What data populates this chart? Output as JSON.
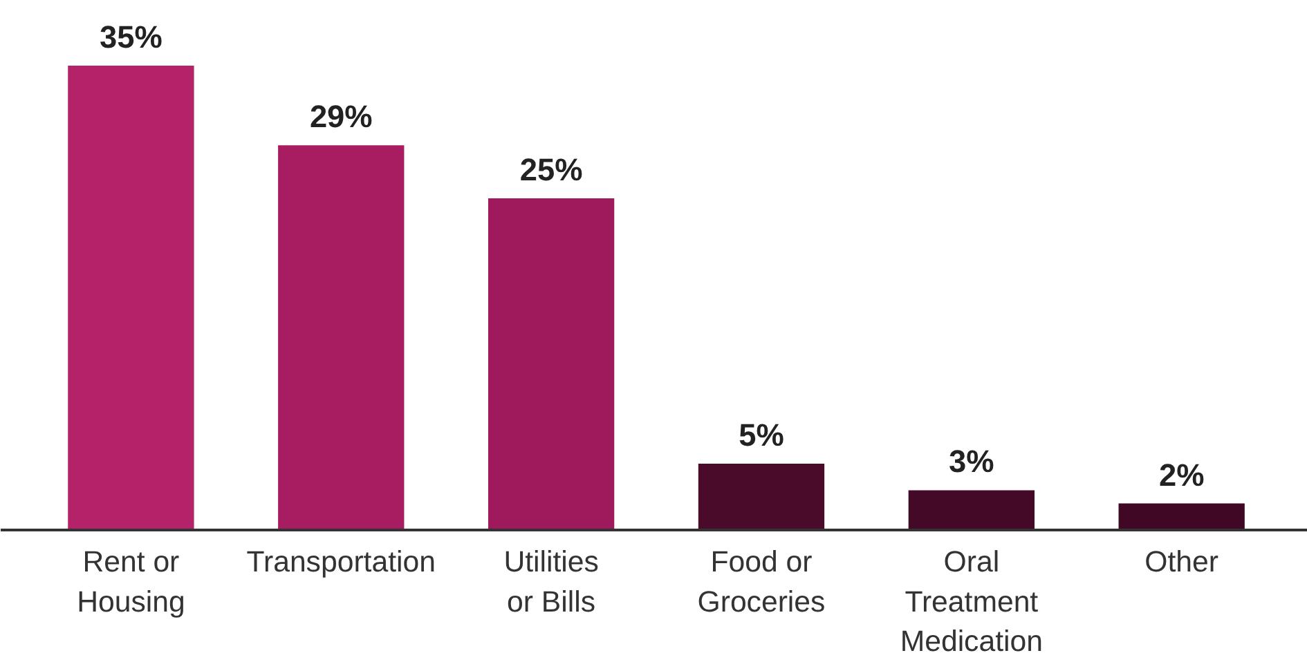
{
  "chart_data": {
    "type": "bar",
    "categories": [
      "Rent or\nHousing",
      "Transportation",
      "Utilities\nor Bills",
      "Food or\nGroceries",
      "Oral\nTreatment\nMedication",
      "Other"
    ],
    "values": [
      35,
      29,
      25,
      5,
      3,
      2
    ],
    "colors": [
      "#b4226a",
      "#a81d62",
      "#9e1a5c",
      "#4a0a2a",
      "#440927",
      "#400824"
    ],
    "value_labels": [
      "35%",
      "29%",
      "25%",
      "5%",
      "3%",
      "2%"
    ],
    "tick_labels": "x",
    "grid": false
  }
}
